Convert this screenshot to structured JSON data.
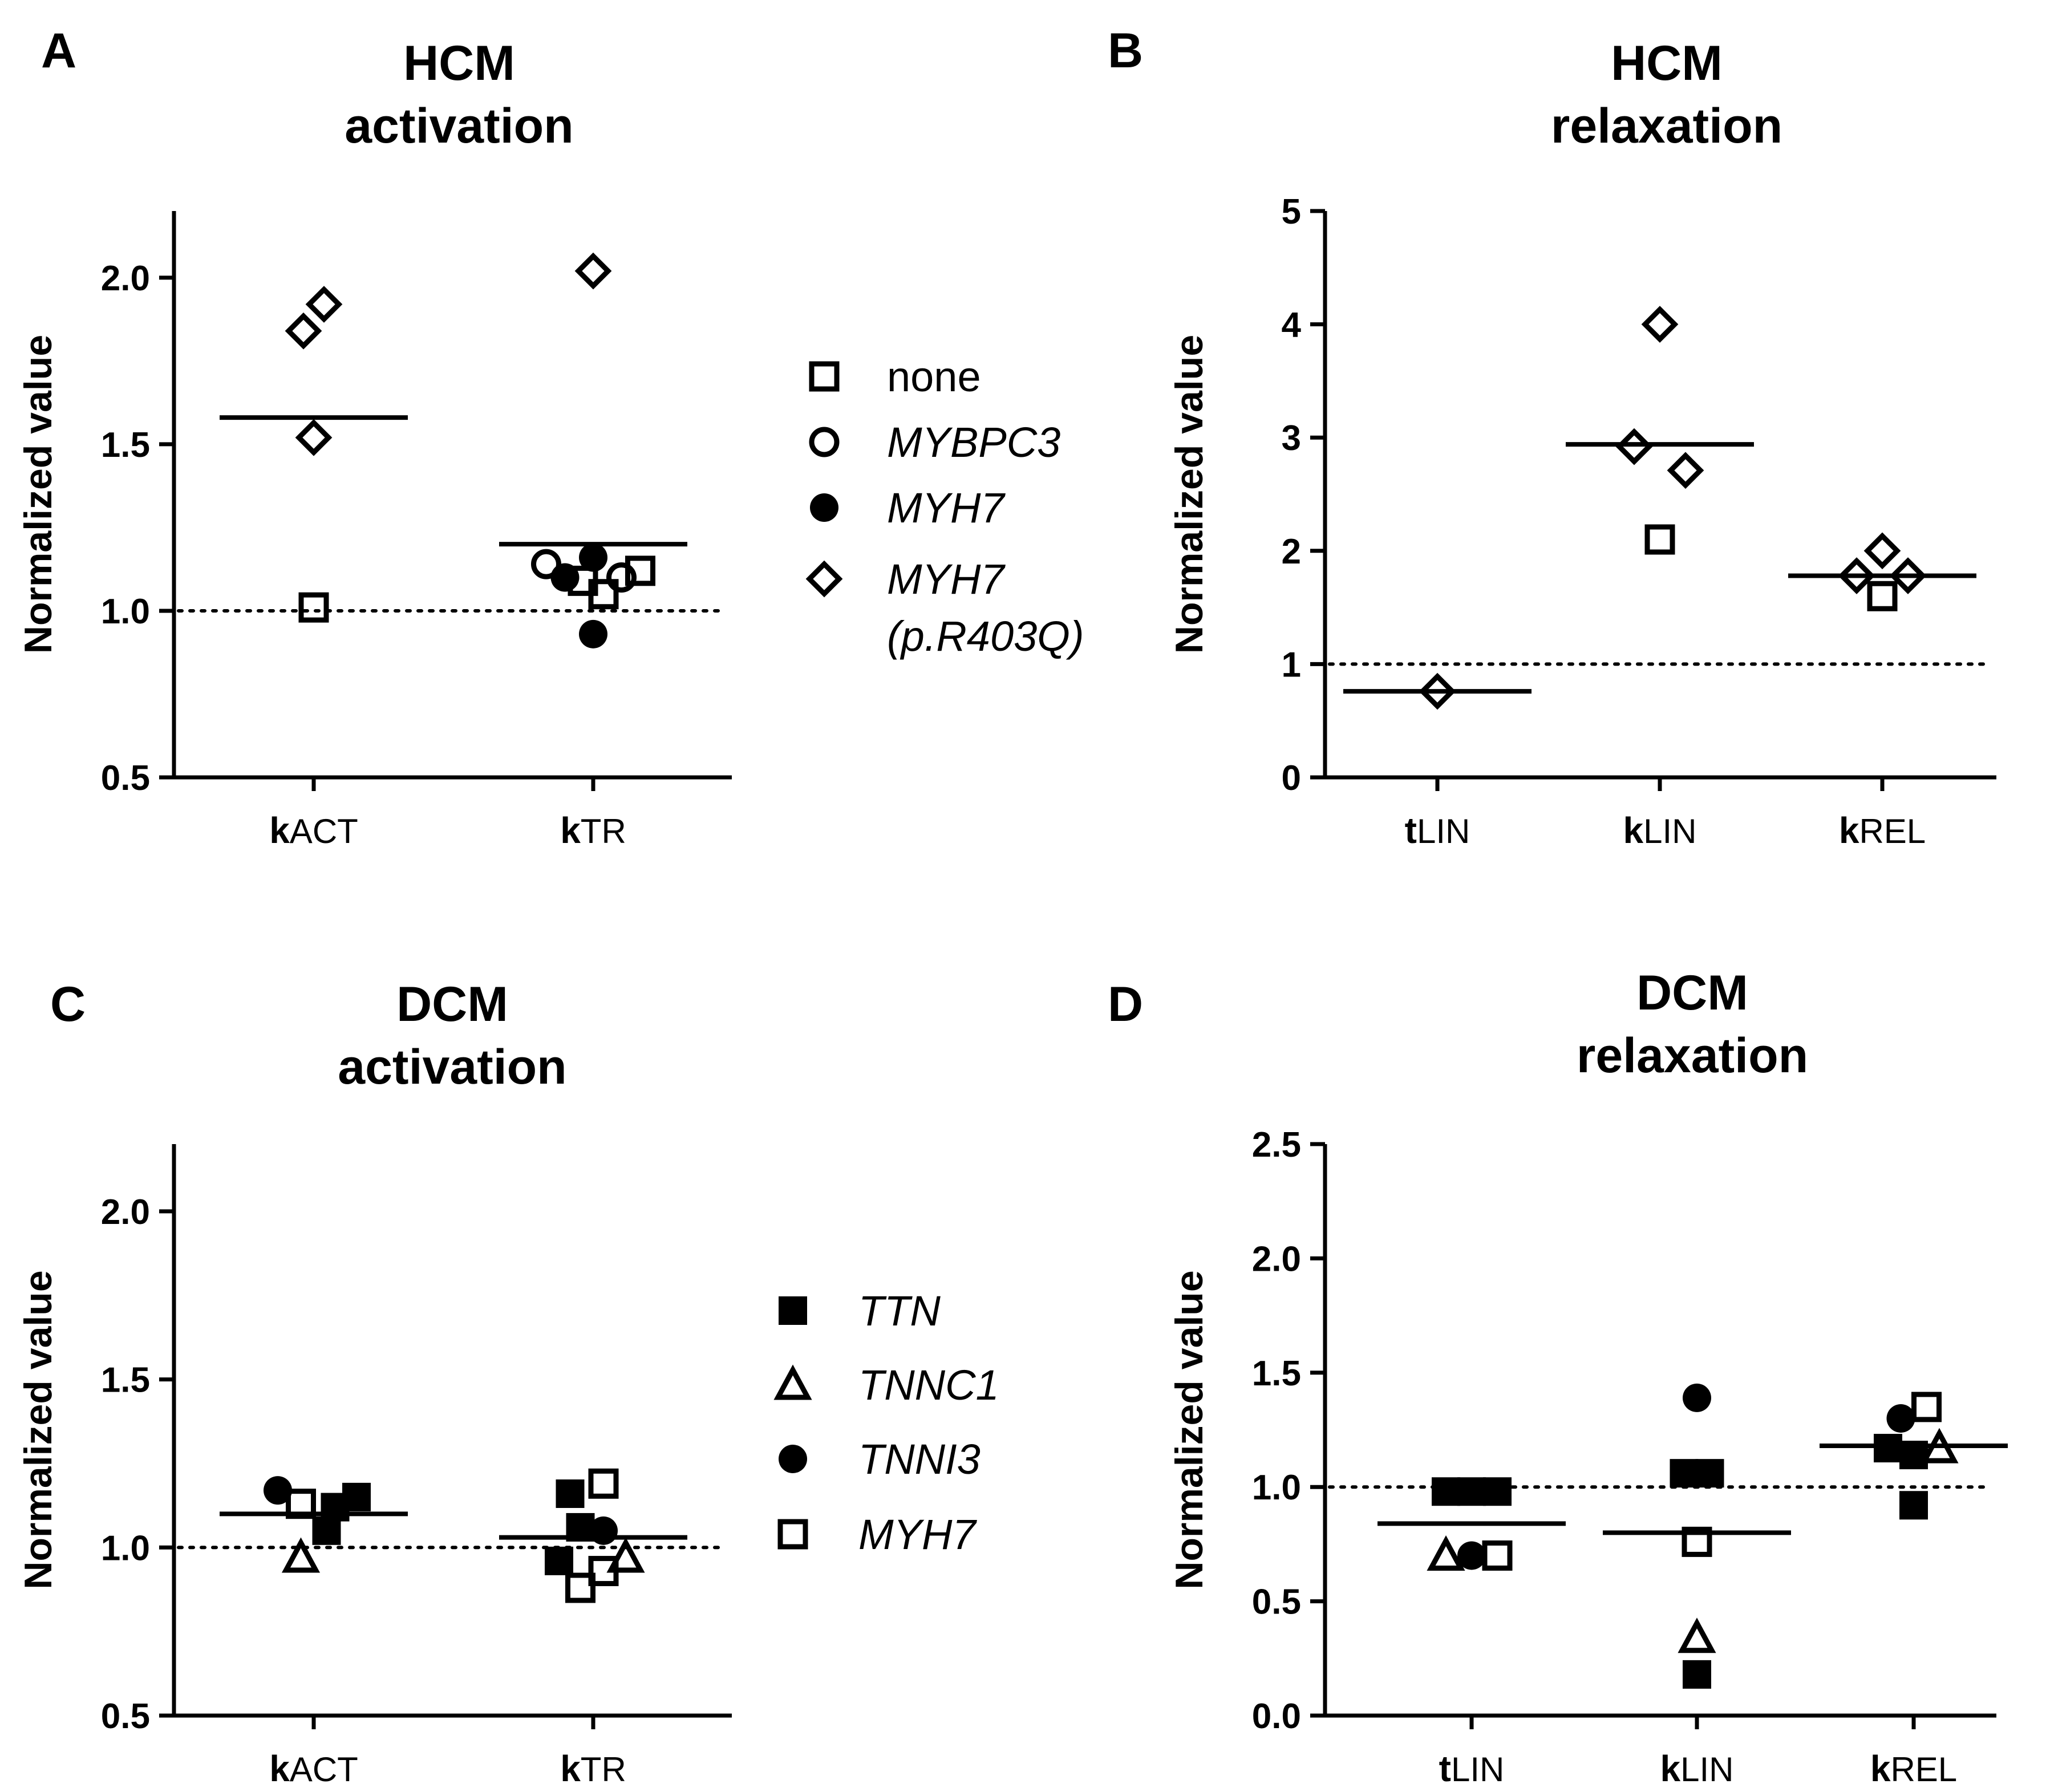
{
  "colors": {
    "ink": "#000000",
    "background": "#ffffff"
  },
  "chart_data": [
    {
      "panel": "A",
      "type": "scatter",
      "title": [
        "HCM",
        "activation"
      ],
      "ylabel": "Normalized value",
      "ylim": [
        0.5,
        2.2
      ],
      "yticks": [
        "0.5",
        "1.0",
        "1.5",
        "2.0"
      ],
      "reference_line": 1.0,
      "categories": [
        {
          "letter": "k",
          "sub": "ACT"
        },
        {
          "letter": "k",
          "sub": "TR"
        }
      ],
      "means": [
        1.58,
        1.2
      ],
      "points": [
        {
          "cat": 0,
          "y": 1.84,
          "group": "MYH7 (p.R403Q)",
          "offset": -0.12
        },
        {
          "cat": 0,
          "y": 1.92,
          "group": "MYH7 (p.R403Q)",
          "offset": 0.12
        },
        {
          "cat": 0,
          "y": 1.52,
          "group": "MYH7 (p.R403Q)",
          "offset": 0.0
        },
        {
          "cat": 0,
          "y": 1.01,
          "group": "none",
          "offset": 0.0
        },
        {
          "cat": 1,
          "y": 2.02,
          "group": "MYH7 (p.R403Q)",
          "offset": 0.0
        },
        {
          "cat": 1,
          "y": 1.14,
          "group": "MYBPC3",
          "offset": -0.55
        },
        {
          "cat": 1,
          "y": 1.1,
          "group": "MYH7",
          "offset": -0.33
        },
        {
          "cat": 1,
          "y": 1.09,
          "group": "none",
          "offset": -0.12
        },
        {
          "cat": 1,
          "y": 1.16,
          "group": "MYH7",
          "offset": 0.0
        },
        {
          "cat": 1,
          "y": 1.05,
          "group": "none",
          "offset": 0.12
        },
        {
          "cat": 1,
          "y": 0.93,
          "group": "MYH7",
          "offset": 0.0
        },
        {
          "cat": 1,
          "y": 1.1,
          "group": "MYBPC3",
          "offset": 0.33
        },
        {
          "cat": 1,
          "y": 1.12,
          "group": "none",
          "offset": 0.55
        }
      ],
      "legend": [
        {
          "label": "none",
          "marker": "square-open",
          "italic": false
        },
        {
          "label": "MYBPC3",
          "marker": "circle-open",
          "italic": true
        },
        {
          "label": "MYH7",
          "marker": "circle-filled",
          "italic": true
        },
        {
          "label": "MYH7",
          "label2": "(p.R403Q)",
          "marker": "diamond-open",
          "italic": true
        }
      ]
    },
    {
      "panel": "B",
      "type": "scatter",
      "title": [
        "HCM",
        "relaxation"
      ],
      "ylabel": "Normalized value",
      "ylim": [
        0,
        5
      ],
      "yticks": [
        "0",
        "1",
        "2",
        "3",
        "4",
        "5"
      ],
      "reference_line": 1,
      "categories": [
        {
          "letter": "t",
          "sub": "LIN"
        },
        {
          "letter": "k",
          "sub": "LIN"
        },
        {
          "letter": "k",
          "sub": "REL"
        }
      ],
      "means": [
        0.76,
        2.94,
        1.78
      ],
      "points": [
        {
          "cat": 0,
          "y": 0.76,
          "group": "MYH7 (p.R403Q)",
          "offset": 0.0
        },
        {
          "cat": 1,
          "y": 4.0,
          "group": "MYH7 (p.R403Q)",
          "offset": 0.0
        },
        {
          "cat": 1,
          "y": 2.92,
          "group": "MYH7 (p.R403Q)",
          "offset": -0.3
        },
        {
          "cat": 1,
          "y": 2.71,
          "group": "MYH7 (p.R403Q)",
          "offset": 0.3
        },
        {
          "cat": 1,
          "y": 2.1,
          "group": "none",
          "offset": 0.0
        },
        {
          "cat": 2,
          "y": 2.0,
          "group": "MYH7 (p.R403Q)",
          "offset": 0.0
        },
        {
          "cat": 2,
          "y": 1.78,
          "group": "MYH7 (p.R403Q)",
          "offset": -0.3
        },
        {
          "cat": 2,
          "y": 1.78,
          "group": "MYH7 (p.R403Q)",
          "offset": 0.3
        },
        {
          "cat": 2,
          "y": 1.6,
          "group": "none",
          "offset": 0.0
        }
      ]
    },
    {
      "panel": "C",
      "type": "scatter",
      "title": [
        "DCM",
        "activation"
      ],
      "ylabel": "Normalized value",
      "ylim": [
        0.5,
        2.2
      ],
      "yticks": [
        "0.5",
        "1.0",
        "1.5",
        "2.0"
      ],
      "reference_line": 1.0,
      "categories": [
        {
          "letter": "k",
          "sub": "ACT"
        },
        {
          "letter": "k",
          "sub": "TR"
        }
      ],
      "means": [
        1.1,
        1.03
      ],
      "points": [
        {
          "cat": 0,
          "y": 1.17,
          "group": "TNNI3",
          "offset": -0.42
        },
        {
          "cat": 0,
          "y": 1.13,
          "group": "MYH7",
          "offset": -0.15
        },
        {
          "cat": 0,
          "y": 0.97,
          "group": "TNNC1",
          "offset": -0.15
        },
        {
          "cat": 0,
          "y": 1.05,
          "group": "TTN",
          "offset": 0.15
        },
        {
          "cat": 0,
          "y": 1.12,
          "group": "TTN",
          "offset": 0.25
        },
        {
          "cat": 0,
          "y": 1.15,
          "group": "TTN",
          "offset": 0.5
        },
        {
          "cat": 1,
          "y": 1.16,
          "group": "TTN",
          "offset": -0.27
        },
        {
          "cat": 1,
          "y": 1.06,
          "group": "TTN",
          "offset": -0.15
        },
        {
          "cat": 1,
          "y": 0.96,
          "group": "TTN",
          "offset": -0.4
        },
        {
          "cat": 1,
          "y": 0.88,
          "group": "MYH7",
          "offset": -0.15
        },
        {
          "cat": 1,
          "y": 0.93,
          "group": "MYH7",
          "offset": 0.12
        },
        {
          "cat": 1,
          "y": 1.05,
          "group": "TNNI3",
          "offset": 0.12
        },
        {
          "cat": 1,
          "y": 1.19,
          "group": "MYH7",
          "offset": 0.12
        },
        {
          "cat": 1,
          "y": 0.97,
          "group": "TNNC1",
          "offset": 0.38
        }
      ],
      "legend": [
        {
          "label": "TTN",
          "marker": "square-filled",
          "italic": true
        },
        {
          "label": "TNNC1",
          "marker": "triangle-open",
          "italic": true
        },
        {
          "label": "TNNI3",
          "marker": "circle-filled",
          "italic": true
        },
        {
          "label": "MYH7",
          "marker": "square-open",
          "italic": true
        }
      ]
    },
    {
      "panel": "D",
      "type": "scatter",
      "title": [
        "DCM",
        "relaxation"
      ],
      "ylabel": "Normalized value",
      "ylim": [
        0.0,
        2.5
      ],
      "yticks": [
        "0.0",
        "0.5",
        "1.0",
        "1.5",
        "2.0",
        "2.5"
      ],
      "reference_line": 1.0,
      "categories": [
        {
          "letter": "t",
          "sub": "LIN"
        },
        {
          "letter": "k",
          "sub": "LIN"
        },
        {
          "letter": "k",
          "sub": "REL"
        }
      ],
      "means": [
        0.84,
        0.8,
        1.18
      ],
      "points": [
        {
          "cat": 0,
          "y": 0.98,
          "group": "TTN",
          "offset": -0.3
        },
        {
          "cat": 0,
          "y": 0.98,
          "group": "TTN",
          "offset": 0.0
        },
        {
          "cat": 0,
          "y": 0.98,
          "group": "TTN",
          "offset": 0.3
        },
        {
          "cat": 0,
          "y": 0.7,
          "group": "TNNC1",
          "offset": -0.3
        },
        {
          "cat": 0,
          "y": 0.7,
          "group": "TNNI3",
          "offset": 0.0
        },
        {
          "cat": 0,
          "y": 0.7,
          "group": "MYH7",
          "offset": 0.3
        },
        {
          "cat": 1,
          "y": 1.39,
          "group": "TNNI3",
          "offset": 0.0
        },
        {
          "cat": 1,
          "y": 1.06,
          "group": "TTN",
          "offset": -0.15
        },
        {
          "cat": 1,
          "y": 1.06,
          "group": "TTN",
          "offset": 0.15
        },
        {
          "cat": 1,
          "y": 0.76,
          "group": "MYH7",
          "offset": 0.0
        },
        {
          "cat": 1,
          "y": 0.34,
          "group": "TNNC1",
          "offset": 0.0
        },
        {
          "cat": 1,
          "y": 0.18,
          "group": "TTN",
          "offset": 0.0
        },
        {
          "cat": 2,
          "y": 1.35,
          "group": "MYH7",
          "offset": 0.15
        },
        {
          "cat": 2,
          "y": 1.3,
          "group": "TNNI3",
          "offset": -0.15
        },
        {
          "cat": 2,
          "y": 1.17,
          "group": "TTN",
          "offset": -0.3
        },
        {
          "cat": 2,
          "y": 1.14,
          "group": "TTN",
          "offset": 0.0
        },
        {
          "cat": 2,
          "y": 1.17,
          "group": "TNNC1",
          "offset": 0.3
        },
        {
          "cat": 2,
          "y": 0.92,
          "group": "TTN",
          "offset": 0.0
        }
      ]
    }
  ]
}
